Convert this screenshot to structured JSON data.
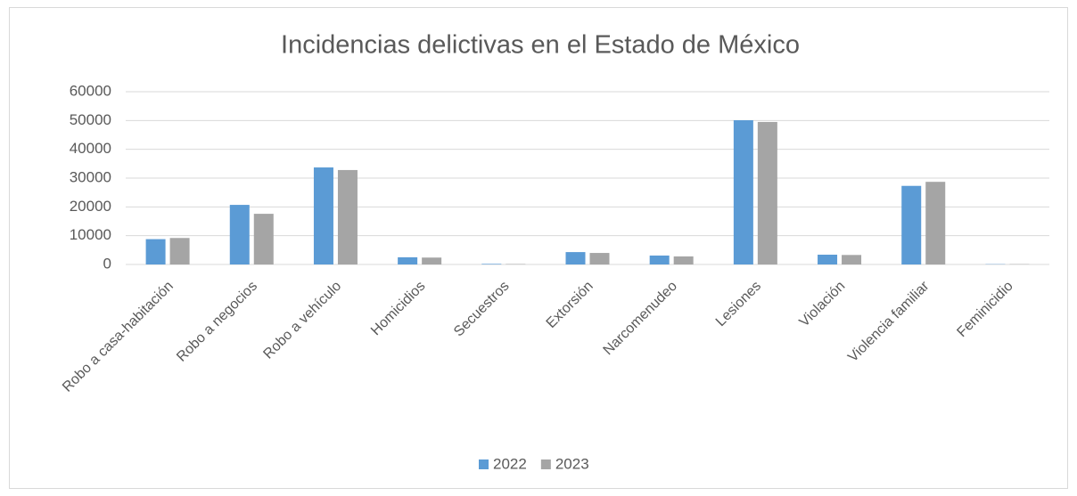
{
  "chart_data": {
    "type": "bar",
    "title": "Incidencias delictivas en el Estado de México",
    "categories": [
      "Robo a casa-habitación",
      "Robo a negocios",
      "Robo a vehículo",
      "Homicidios",
      "Secuestros",
      "Extorsión",
      "Narcomenudeo",
      "Lesiones",
      "Violación",
      "Violencia familiar",
      "Feminicidio"
    ],
    "series": [
      {
        "name": "2022",
        "color": "#5b9bd5",
        "values": [
          8800,
          20700,
          33700,
          2500,
          200,
          4300,
          3100,
          50100,
          3400,
          27300,
          100
        ]
      },
      {
        "name": "2023",
        "color": "#a5a5a5",
        "values": [
          9200,
          17600,
          32800,
          2400,
          150,
          4000,
          2800,
          49500,
          3300,
          28700,
          100
        ]
      }
    ],
    "ylim": [
      0,
      60000
    ],
    "yticks": [
      0,
      10000,
      20000,
      30000,
      40000,
      50000,
      60000
    ],
    "grid": true,
    "legend": "bottom"
  }
}
